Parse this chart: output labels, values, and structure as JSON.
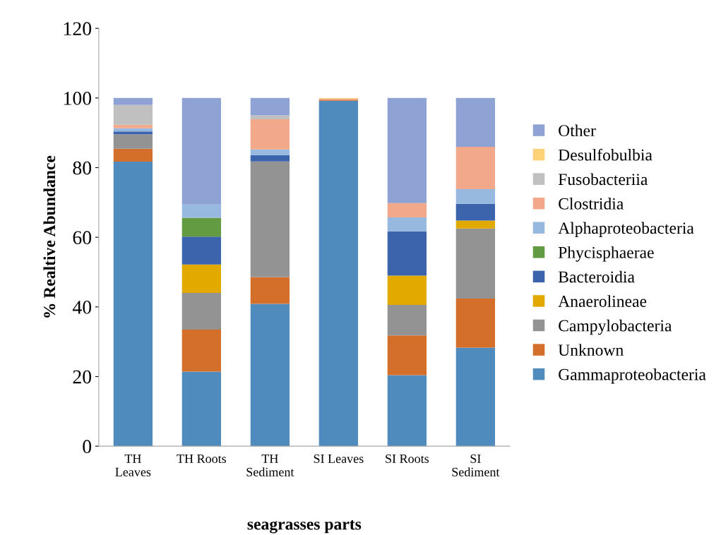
{
  "chart_data": {
    "type": "bar",
    "stacked": true,
    "xlabel": "seagrasses parts",
    "ylabel": "% Realtive Abundance",
    "categories": [
      "TH\nLeaves",
      "TH Roots",
      "TH\nSediment",
      "SI Leaves",
      "SI Roots",
      "SI\nSediment"
    ],
    "ylim": [
      0,
      120
    ],
    "yticks": [
      0,
      20,
      40,
      60,
      80,
      100,
      120
    ],
    "grid": false,
    "legend": "right",
    "series": [
      {
        "name": "Gammaproteobacteria",
        "color": "#4f8bbd",
        "values": [
          81.7,
          21.4,
          40.9,
          99.2,
          20.4,
          28.3
        ]
      },
      {
        "name": "Unknown",
        "color": "#d36f2b",
        "values": [
          3.7,
          12.1,
          7.7,
          0.3,
          11.4,
          14.1
        ]
      },
      {
        "name": "Campylobacteria",
        "color": "#939393",
        "values": [
          4.2,
          10.5,
          33.2,
          0,
          8.8,
          20.1
        ]
      },
      {
        "name": "Anaerolineae",
        "color": "#e2aa00",
        "values": [
          0,
          8.2,
          0,
          0,
          8.4,
          2.3
        ]
      },
      {
        "name": "Bacteroidia",
        "color": "#3c64ad",
        "values": [
          0.8,
          8.0,
          1.8,
          0,
          12.7,
          4.8
        ]
      },
      {
        "name": "Phycisphaerae",
        "color": "#629b41",
        "values": [
          0,
          5.4,
          0,
          0,
          0,
          0
        ]
      },
      {
        "name": "Alphaproteobacteria",
        "color": "#97b8df",
        "values": [
          0.9,
          3.8,
          1.6,
          0,
          4.0,
          4.2
        ]
      },
      {
        "name": "Clostridia",
        "color": "#f1a88b",
        "values": [
          1.0,
          0,
          8.7,
          0.3,
          4.1,
          12.2
        ]
      },
      {
        "name": "Fusobacteriia",
        "color": "#c0c0c0",
        "values": [
          5.7,
          0,
          1.1,
          0,
          0,
          0
        ]
      },
      {
        "name": "Desulfobulbia",
        "color": "#ffd27a",
        "values": [
          0,
          0,
          0,
          0.2,
          0,
          0
        ]
      },
      {
        "name": "Other",
        "color": "#8fa2d4",
        "values": [
          2.0,
          30.6,
          5.0,
          0,
          30.2,
          14.0
        ]
      }
    ]
  }
}
